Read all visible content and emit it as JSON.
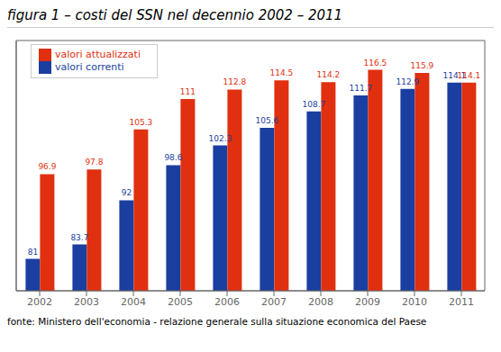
{
  "chart_data": {
    "type": "bar",
    "title": "figura 1 – costi del SSN nel decennio 2002 – 2011",
    "annotations": [
      "fonte: Ministero dell'economia - relazione generale sulla situazione economica del Paese"
    ],
    "categories": [
      "2002",
      "2003",
      "2004",
      "2005",
      "2006",
      "2007",
      "2008",
      "2009",
      "2010",
      "2011"
    ],
    "series": [
      {
        "name": "valori correnti",
        "color": "#1a3fa0",
        "values": [
          81.0,
          83.7,
          92.0,
          98.6,
          102.3,
          105.6,
          108.7,
          111.7,
          112.9,
          114.1
        ]
      },
      {
        "name": "valori attualizzati",
        "color": "#e03010",
        "values": [
          96.9,
          97.8,
          105.3,
          111.0,
          112.8,
          114.5,
          114.2,
          116.5,
          115.9,
          114.1
        ]
      }
    ],
    "ylim": [
      75,
      122
    ],
    "tick_labels": "x",
    "data_labels": true,
    "legend": "upper left",
    "grid": false
  }
}
